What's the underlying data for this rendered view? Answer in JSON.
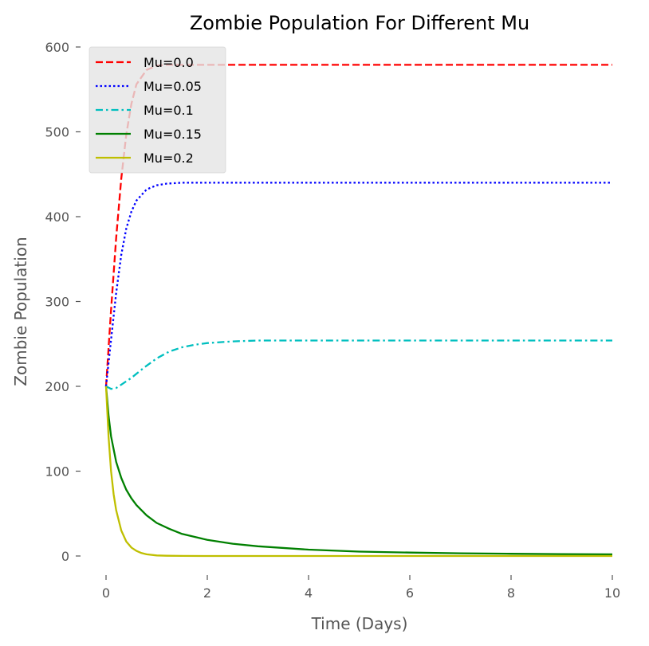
{
  "chart_data": {
    "type": "line",
    "title": "Zombie Population For Different Mu",
    "xlabel": "Time (Days)",
    "ylabel": "Zombie Population",
    "xlim": [
      0,
      10
    ],
    "ylim": [
      0,
      600
    ],
    "xticks": [
      "0",
      "2",
      "4",
      "6",
      "8",
      "10"
    ],
    "yticks": [
      "0",
      "100",
      "200",
      "300",
      "400",
      "500",
      "600"
    ],
    "grid": false,
    "legend_position": "top-left",
    "series": [
      {
        "name": "Mu=0.0",
        "color": "#ff0000",
        "style": "dashed",
        "x": [
          0,
          0.1,
          0.2,
          0.3,
          0.4,
          0.5,
          0.6,
          0.8,
          1.0,
          1.2,
          1.5,
          2,
          3,
          4,
          6,
          8,
          10
        ],
        "y": [
          200,
          290,
          375,
          445,
          497,
          533,
          556,
          573,
          578,
          579,
          579,
          579,
          579,
          579,
          579,
          579,
          579
        ]
      },
      {
        "name": "Mu=0.05",
        "color": "#0000ff",
        "style": "dotted",
        "x": [
          0,
          0.1,
          0.2,
          0.3,
          0.4,
          0.5,
          0.6,
          0.8,
          1.0,
          1.2,
          1.5,
          2,
          3,
          4,
          6,
          8,
          10
        ],
        "y": [
          200,
          255,
          310,
          355,
          386,
          406,
          419,
          432,
          437,
          439,
          440,
          440,
          440,
          440,
          440,
          440,
          440
        ]
      },
      {
        "name": "Mu=0.1",
        "color": "#00bfbf",
        "style": "dashdot",
        "x": [
          0,
          0.1,
          0.2,
          0.3,
          0.5,
          0.75,
          1.0,
          1.25,
          1.5,
          1.75,
          2.0,
          2.5,
          3,
          4,
          6,
          8,
          10
        ],
        "y": [
          200,
          197,
          198,
          202,
          210,
          222,
          233,
          241,
          246,
          249,
          251,
          253,
          254,
          254,
          254,
          254,
          254
        ]
      },
      {
        "name": "Mu=0.15",
        "color": "#008000",
        "style": "solid",
        "x": [
          0,
          0.05,
          0.1,
          0.2,
          0.3,
          0.4,
          0.5,
          0.6,
          0.8,
          1.0,
          1.25,
          1.5,
          2,
          2.5,
          3,
          4,
          5,
          6,
          7,
          8,
          9,
          10
        ],
        "y": [
          200,
          165,
          141,
          111,
          92,
          78,
          68,
          60,
          48,
          39,
          32,
          26,
          19,
          14.5,
          11.5,
          7.5,
          5.2,
          4,
          3.2,
          2.6,
          2.2,
          2
        ]
      },
      {
        "name": "Mu=0.2",
        "color": "#bfbf00",
        "style": "solid",
        "x": [
          0,
          0.05,
          0.1,
          0.15,
          0.2,
          0.3,
          0.4,
          0.5,
          0.6,
          0.7,
          0.8,
          1.0,
          1.2,
          1.5,
          2,
          3,
          4,
          6,
          8,
          10
        ],
        "y": [
          200,
          140,
          100,
          73,
          54,
          30,
          17,
          10,
          6,
          3.5,
          2,
          0.7,
          0.3,
          0.1,
          0,
          0,
          0,
          0,
          0,
          0
        ]
      }
    ]
  }
}
